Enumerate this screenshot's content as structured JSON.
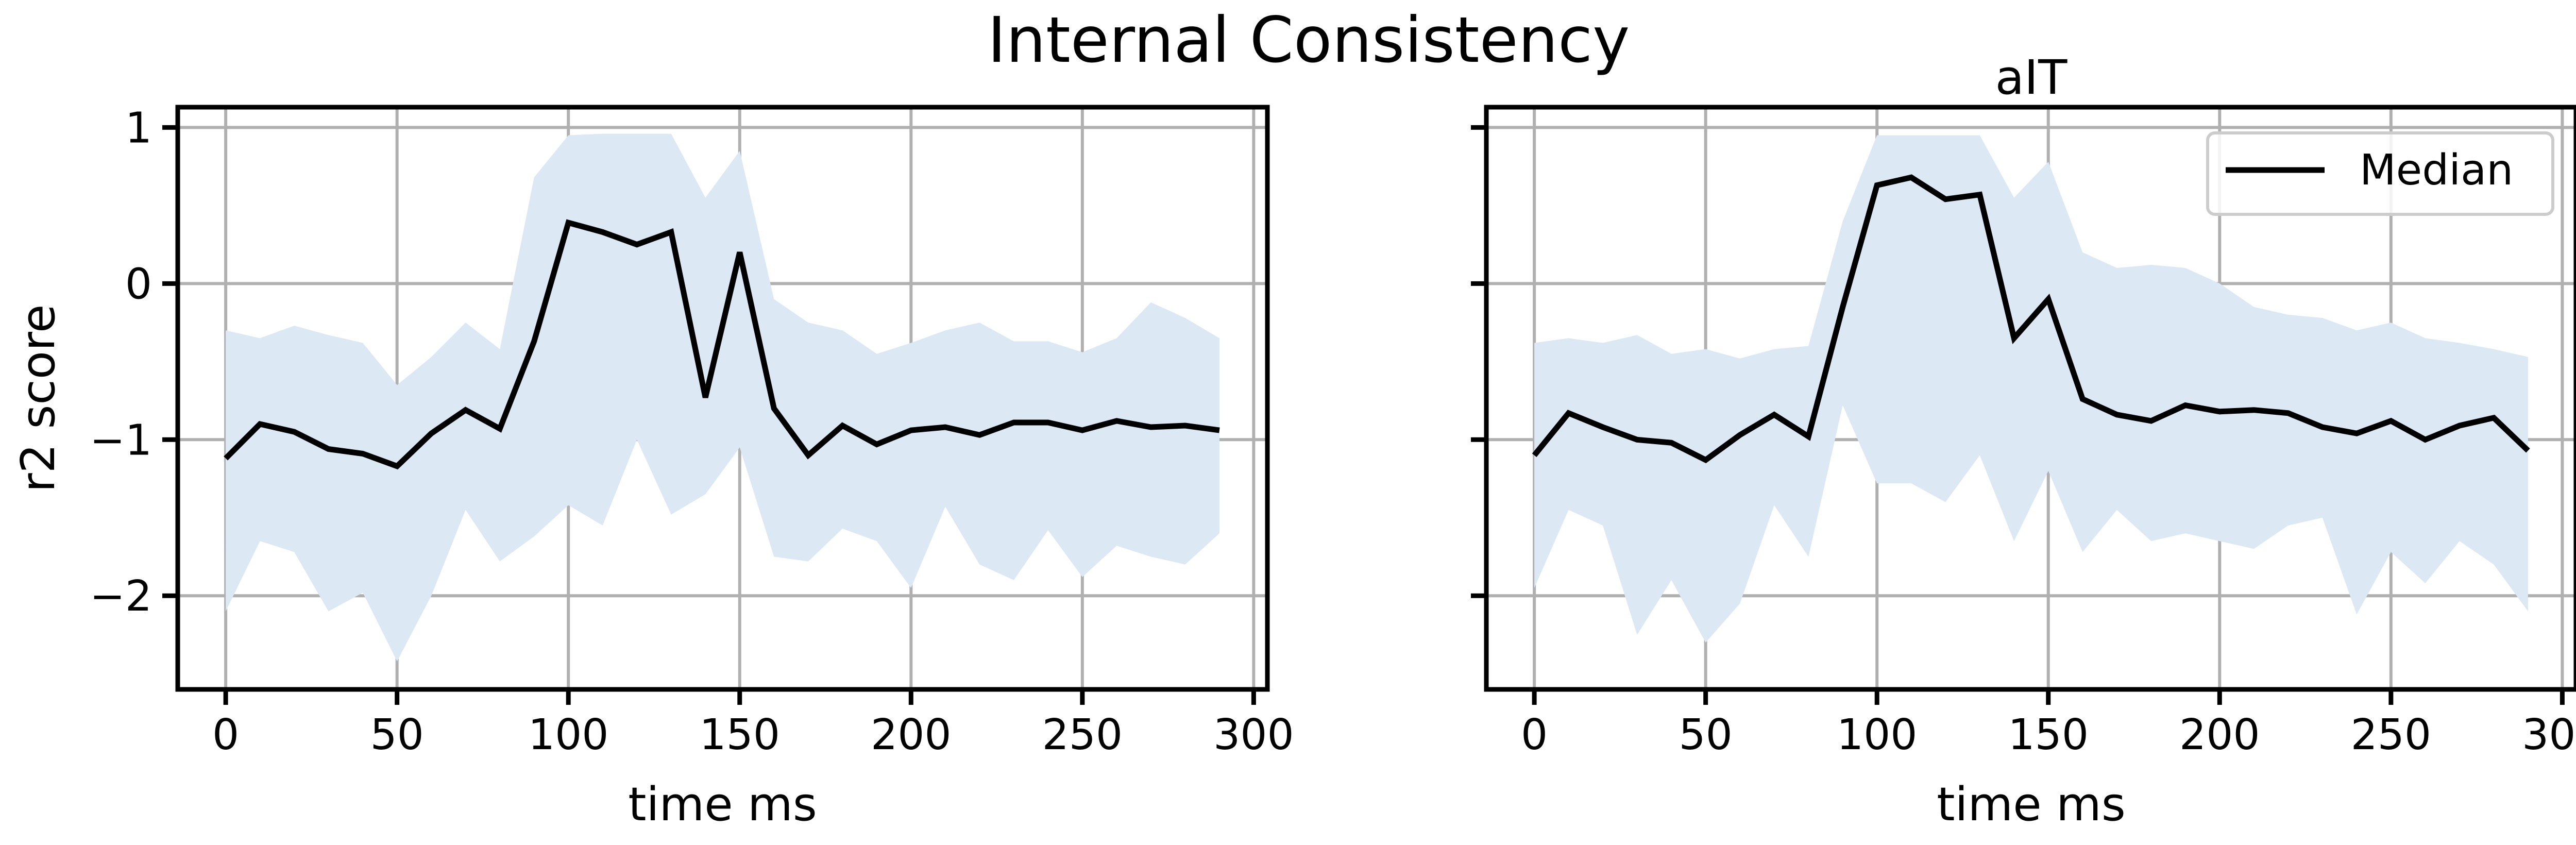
{
  "figure": {
    "suptitle": "Internal Consistency"
  },
  "colors": {
    "median_line": "#000000",
    "band_fill": "#dce8f4"
  },
  "chart_data": [
    {
      "type": "line",
      "title": "",
      "xlabel": "time ms",
      "ylabel": "r2 score",
      "xlim": [
        -14,
        304
      ],
      "ylim": [
        -2.6,
        1.13
      ],
      "xticks": [
        0,
        50,
        100,
        150,
        200,
        250,
        300
      ],
      "yticks": [
        -2,
        -1,
        0,
        1
      ],
      "ytick_labels": [
        "−2",
        "−1",
        "0",
        "1"
      ],
      "grid": true,
      "legend": null,
      "x": [
        0,
        10,
        20,
        30,
        40,
        50,
        60,
        70,
        80,
        90,
        100,
        110,
        120,
        130,
        140,
        150,
        160,
        170,
        180,
        190,
        200,
        210,
        220,
        230,
        240,
        250,
        260,
        270,
        280,
        290
      ],
      "series": [
        {
          "name": "Median",
          "values": [
            -1.12,
            -0.9,
            -0.95,
            -1.06,
            -1.09,
            -1.17,
            -0.96,
            -0.81,
            -0.93,
            -0.37,
            0.39,
            0.33,
            0.25,
            0.33,
            -0.73,
            0.2,
            -0.8,
            -1.1,
            -0.91,
            -1.03,
            -0.94,
            -0.92,
            -0.97,
            -0.89,
            -0.89,
            -0.94,
            -0.88,
            -0.92,
            -0.91,
            -0.94
          ]
        }
      ],
      "band": {
        "upper": [
          -0.3,
          -0.35,
          -0.27,
          -0.33,
          -0.38,
          -0.65,
          -0.47,
          -0.25,
          -0.42,
          0.68,
          0.95,
          0.96,
          0.96,
          0.96,
          0.55,
          0.85,
          -0.1,
          -0.25,
          -0.3,
          -0.45,
          -0.38,
          -0.3,
          -0.25,
          -0.37,
          -0.37,
          -0.44,
          -0.35,
          -0.12,
          -0.22,
          -0.35
        ],
        "lower": [
          -2.1,
          -1.65,
          -1.72,
          -2.1,
          -1.98,
          -2.42,
          -2.0,
          -1.45,
          -1.78,
          -1.62,
          -1.42,
          -1.55,
          -1.0,
          -1.48,
          -1.35,
          -1.05,
          -1.75,
          -1.78,
          -1.57,
          -1.65,
          -1.95,
          -1.43,
          -1.8,
          -1.9,
          -1.58,
          -1.88,
          -1.68,
          -1.75,
          -1.8,
          -1.6
        ]
      }
    },
    {
      "type": "line",
      "title": "aIT",
      "xlabel": "time ms",
      "ylabel": "",
      "xlim": [
        -14,
        304
      ],
      "ylim": [
        -2.6,
        1.13
      ],
      "xticks": [
        0,
        50,
        100,
        150,
        200,
        250,
        300
      ],
      "yticks": [
        -2,
        -1,
        0,
        1
      ],
      "ytick_labels": [
        "",
        "",
        "",
        ""
      ],
      "grid": true,
      "legend": "top-right",
      "x": [
        0,
        10,
        20,
        30,
        40,
        50,
        60,
        70,
        80,
        90,
        100,
        110,
        120,
        130,
        140,
        150,
        160,
        170,
        180,
        190,
        200,
        210,
        220,
        230,
        240,
        250,
        260,
        270,
        280,
        290
      ],
      "series": [
        {
          "name": "Median",
          "values": [
            -1.1,
            -0.83,
            -0.92,
            -1.0,
            -1.02,
            -1.13,
            -0.97,
            -0.84,
            -0.98,
            -0.15,
            0.63,
            0.68,
            0.54,
            0.57,
            -0.35,
            -0.1,
            -0.74,
            -0.84,
            -0.88,
            -0.78,
            -0.82,
            -0.81,
            -0.83,
            -0.92,
            -0.96,
            -0.88,
            -1.0,
            -0.91,
            -0.86,
            -1.07
          ]
        }
      ],
      "band": {
        "upper": [
          -0.38,
          -0.35,
          -0.38,
          -0.33,
          -0.45,
          -0.42,
          -0.48,
          -0.42,
          -0.4,
          0.4,
          0.95,
          0.95,
          0.95,
          0.95,
          0.55,
          0.78,
          0.2,
          0.1,
          0.12,
          0.1,
          0.0,
          -0.15,
          -0.2,
          -0.22,
          -0.3,
          -0.25,
          -0.35,
          -0.38,
          -0.42,
          -0.47
        ],
        "lower": [
          -1.95,
          -1.45,
          -1.55,
          -2.25,
          -1.9,
          -2.3,
          -2.05,
          -1.42,
          -1.75,
          -0.78,
          -1.28,
          -1.28,
          -1.4,
          -1.1,
          -1.65,
          -1.2,
          -1.72,
          -1.45,
          -1.65,
          -1.6,
          -1.65,
          -1.7,
          -1.55,
          -1.5,
          -2.12,
          -1.72,
          -1.92,
          -1.65,
          -1.8,
          -2.1
        ]
      }
    }
  ]
}
